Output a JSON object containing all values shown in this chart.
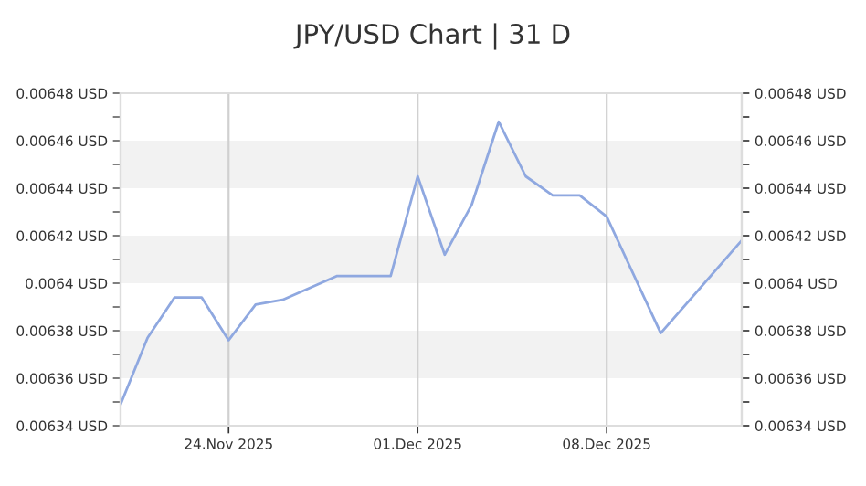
{
  "chart_data": {
    "type": "line",
    "title": "JPY/USD Chart | 31 D",
    "x": [
      "2025-11-20",
      "2025-11-21",
      "2025-11-22",
      "2025-11-23",
      "2025-11-24",
      "2025-11-25",
      "2025-11-26",
      "2025-11-28",
      "2025-11-30",
      "2025-12-01",
      "2025-12-02",
      "2025-12-03",
      "2025-12-04",
      "2025-12-05",
      "2025-12-06",
      "2025-12-07",
      "2025-12-08",
      "2025-12-10",
      "2025-12-13"
    ],
    "series": [
      {
        "color": "#8fa8e0",
        "values": [
          0.006349,
          0.006377,
          0.006394,
          0.006394,
          0.006376,
          0.006391,
          0.006393,
          0.006403,
          0.006403,
          0.006445,
          0.006412,
          0.006433,
          0.006468,
          0.006445,
          0.006437,
          0.006437,
          0.006428,
          0.006379,
          0.006418
        ]
      }
    ],
    "xlim": [
      "2025-11-20",
      "2025-12-13"
    ],
    "xticks": [
      {
        "value": "2025-11-24",
        "label": "24.Nov 2025"
      },
      {
        "value": "2025-12-01",
        "label": "01.Dec 2025"
      },
      {
        "value": "2025-12-08",
        "label": "08.Dec 2025"
      }
    ],
    "ylim": [
      0.00634,
      0.00648
    ],
    "yticks": [
      {
        "value": 0.00634,
        "label": "0.00634 USD"
      },
      {
        "value": 0.00636,
        "label": "0.00636 USD"
      },
      {
        "value": 0.00638,
        "label": "0.00638 USD"
      },
      {
        "value": 0.0064,
        "label": "0.0064 USD"
      },
      {
        "value": 0.00642,
        "label": "0.00642 USD"
      },
      {
        "value": 0.00644,
        "label": "0.00644 USD"
      },
      {
        "value": 0.00646,
        "label": "0.00646 USD"
      },
      {
        "value": 0.00648,
        "label": "0.00648 USD"
      },
      {
        "value": 0.00635,
        "label": null
      },
      {
        "value": 0.00637,
        "label": null
      },
      {
        "value": 0.00639,
        "label": null
      },
      {
        "value": 0.00641,
        "label": null
      },
      {
        "value": 0.00643,
        "label": null
      },
      {
        "value": 0.00645,
        "label": null
      },
      {
        "value": 0.00647,
        "label": null
      }
    ],
    "y2lim": [
      0.00634,
      0.00648
    ],
    "y2ticks": [
      {
        "value": 0.00634,
        "label": "0.00634 USD"
      },
      {
        "value": 0.00636,
        "label": "0.00636 USD"
      },
      {
        "value": 0.00638,
        "label": "0.00638 USD"
      },
      {
        "value": 0.0064,
        "label": "0.0064 USD"
      },
      {
        "value": 0.00642,
        "label": "0.00642 USD"
      },
      {
        "value": 0.00644,
        "label": "0.00644 USD"
      },
      {
        "value": 0.00646,
        "label": "0.00646 USD"
      },
      {
        "value": 0.00648,
        "label": "0.00648 USD"
      },
      {
        "value": 0.00635,
        "label": null
      },
      {
        "value": 0.00637,
        "label": null
      },
      {
        "value": 0.00639,
        "label": null
      },
      {
        "value": 0.00641,
        "label": null
      },
      {
        "value": 0.00643,
        "label": null
      },
      {
        "value": 0.00645,
        "label": null
      },
      {
        "value": 0.00647,
        "label": null
      }
    ],
    "bands": [
      {
        "axis": "y",
        "from": 0.00636,
        "to": 0.00638,
        "color": "#f2f2f2"
      },
      {
        "axis": "y",
        "from": 0.0064,
        "to": 0.00642,
        "color": "#f2f2f2"
      },
      {
        "axis": "y",
        "from": 0.00644,
        "to": 0.00646,
        "color": "#f2f2f2"
      }
    ],
    "grid": "x",
    "legend": false,
    "marker": "none",
    "line_style": "solid"
  }
}
